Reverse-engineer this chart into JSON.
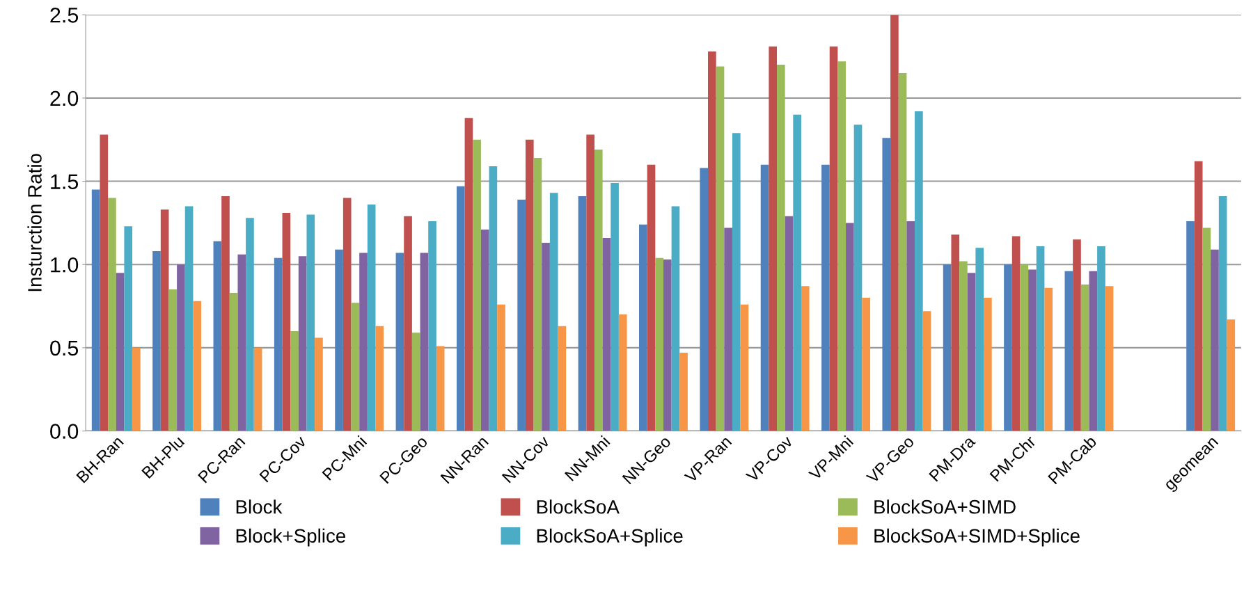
{
  "chart_data": {
    "type": "bar",
    "ylabel": "Insturction Ratio",
    "categories": [
      "BH-Ran",
      "BH-Plu",
      "PC-Ran",
      "PC-Cov",
      "PC-Mni",
      "PC-Geo",
      "NN-Ran",
      "NN-Cov",
      "NN-Mni",
      "NN-Geo",
      "VP-Ran",
      "VP-Cov",
      "VP-Mni",
      "VP-Geo",
      "PM-Dra",
      "PM-Chr",
      "PM-Cab",
      null,
      "geomean"
    ],
    "series": [
      {
        "name": "Block",
        "color": "#4f81bd",
        "values": [
          1.45,
          1.08,
          1.14,
          1.04,
          1.09,
          1.07,
          1.47,
          1.39,
          1.41,
          1.24,
          1.58,
          1.6,
          1.6,
          1.76,
          1.0,
          1.0,
          0.96,
          null,
          1.26
        ]
      },
      {
        "name": "BlockSoA",
        "color": "#c0504d",
        "values": [
          1.78,
          1.33,
          1.41,
          1.31,
          1.4,
          1.29,
          1.88,
          1.75,
          1.78,
          1.6,
          2.28,
          2.31,
          2.31,
          2.5,
          1.18,
          1.17,
          1.15,
          null,
          1.62
        ]
      },
      {
        "name": "BlockSoA+SIMD",
        "color": "#9bbb59",
        "values": [
          1.4,
          0.85,
          0.83,
          0.6,
          0.77,
          0.59,
          1.75,
          1.64,
          1.69,
          1.04,
          2.19,
          2.2,
          2.22,
          2.15,
          1.02,
          1.0,
          0.88,
          null,
          1.22
        ]
      },
      {
        "name": "Block+Splice",
        "color": "#8064a2",
        "values": [
          0.95,
          1.0,
          1.06,
          1.05,
          1.07,
          1.07,
          1.21,
          1.13,
          1.16,
          1.03,
          1.22,
          1.29,
          1.25,
          1.26,
          0.95,
          0.97,
          0.96,
          null,
          1.09
        ]
      },
      {
        "name": "BlockSoA+Splice",
        "color": "#4bacc6",
        "values": [
          1.23,
          1.35,
          1.28,
          1.3,
          1.36,
          1.26,
          1.59,
          1.43,
          1.49,
          1.35,
          1.79,
          1.9,
          1.84,
          1.92,
          1.1,
          1.11,
          1.11,
          null,
          1.41
        ]
      },
      {
        "name": "BlockSoA+SIMD+Splice",
        "color": "#f79646",
        "values": [
          0.5,
          0.78,
          0.5,
          0.56,
          0.63,
          0.51,
          0.76,
          0.63,
          0.7,
          0.47,
          0.76,
          0.87,
          0.8,
          0.72,
          0.8,
          0.86,
          0.87,
          null,
          0.67
        ]
      }
    ],
    "ylim": [
      0,
      2.5
    ],
    "yticks": [
      {
        "value": 0,
        "label": "0.0"
      },
      {
        "value": 0.5,
        "label": "0.5"
      },
      {
        "value": 1,
        "label": "1.0"
      },
      {
        "value": 1.5,
        "label": "1.5"
      },
      {
        "value": 2,
        "label": "2.0"
      },
      {
        "value": 2.5,
        "label": "2.5"
      }
    ],
    "grid": "y",
    "legend": "bottom"
  }
}
